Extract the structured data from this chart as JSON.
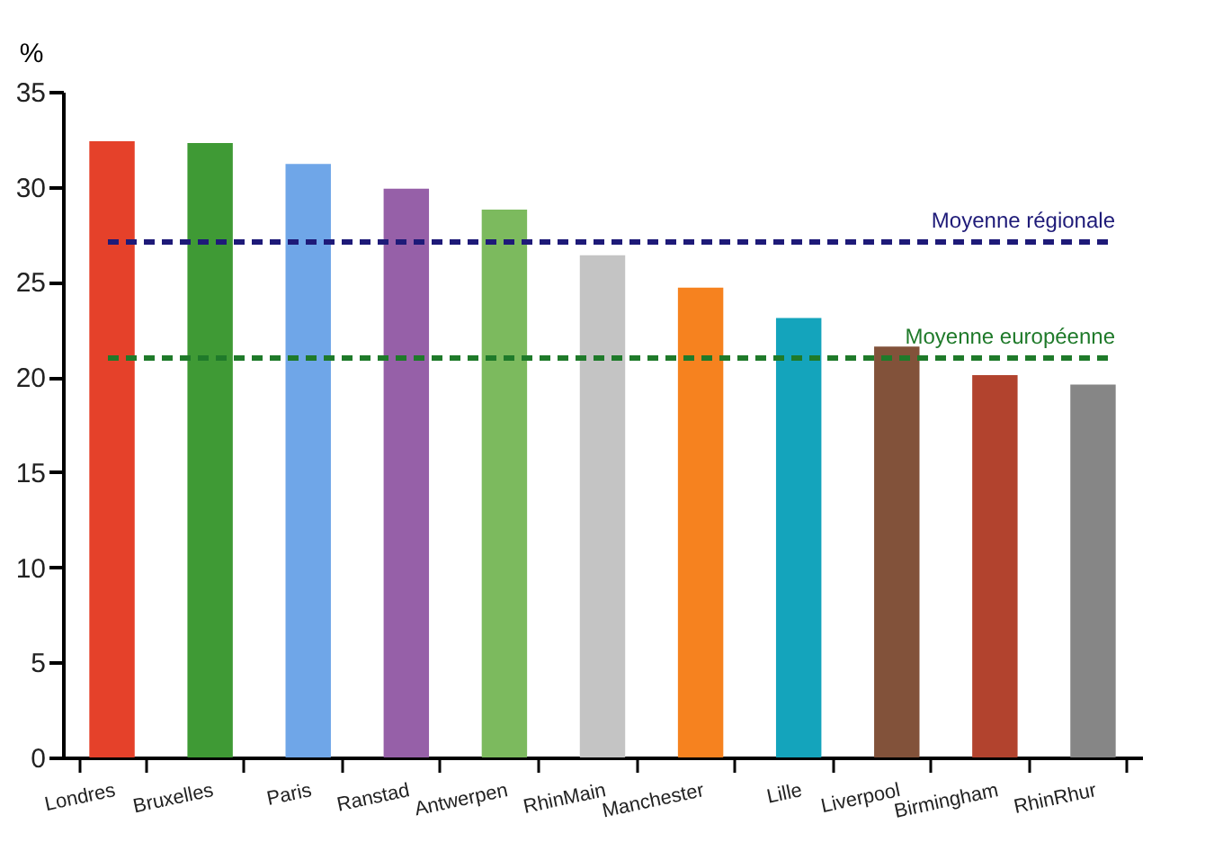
{
  "chart_data": {
    "type": "bar",
    "ylabel": "%",
    "categories": [
      "Londres",
      "Bruxelles",
      "Paris",
      "Ranstad",
      "Antwerpen",
      "RhinMain",
      "Manchester",
      "Lille",
      "Liverpool",
      "Birmingham",
      "RhinRhur"
    ],
    "values": [
      32.4,
      32.3,
      31.2,
      29.9,
      28.8,
      26.4,
      24.7,
      23.1,
      21.6,
      20.1,
      19.6
    ],
    "colors": [
      "#e5412a",
      "#3f9a35",
      "#6fa6e8",
      "#9660a8",
      "#7cba5e",
      "#c4c4c4",
      "#f6821f",
      "#14a4bc",
      "#82523a",
      "#b2432e",
      "#868686"
    ],
    "ylim": [
      0,
      35
    ],
    "yticks": [
      0,
      5,
      10,
      15,
      20,
      25,
      30,
      35
    ],
    "grid": false,
    "ref_lines": [
      {
        "axis": "y",
        "value": 27.1,
        "label": "Moyenne régionale",
        "color": "#1e1a78",
        "line_style": "dashed"
      },
      {
        "axis": "y",
        "value": 21,
        "label": "Moyenne européenne",
        "color": "#1f7a2a",
        "line_style": "dashed"
      }
    ]
  }
}
